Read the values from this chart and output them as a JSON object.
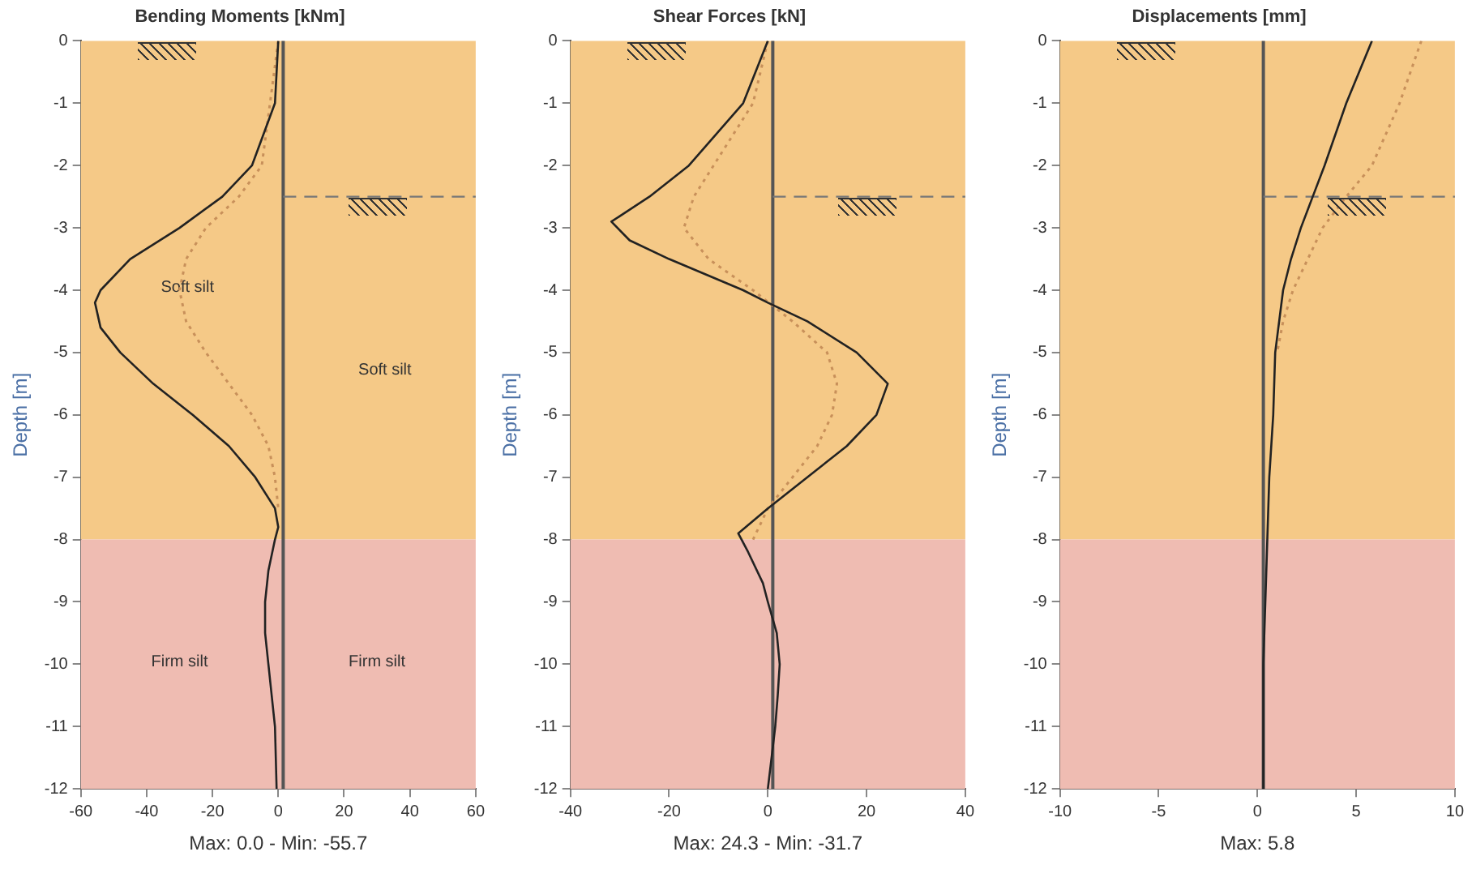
{
  "chart_data": [
    {
      "type": "line",
      "title": "Bending Moments [kNm]",
      "xlabel": "Max: 0.0 - Min: -55.7",
      "ylabel": "Depth [m]",
      "xlim": [
        -60,
        60
      ],
      "xticks": [
        -60,
        -40,
        -20,
        0,
        20,
        40,
        60
      ],
      "ylim": [
        -12,
        0
      ],
      "yticks": [
        0,
        -1,
        -2,
        -3,
        -4,
        -5,
        -6,
        -7,
        -8,
        -9,
        -10,
        -11,
        -12
      ],
      "grid": false,
      "legend": false,
      "marker": "none",
      "series": [
        {
          "color": "#222222",
          "line_style": "solid",
          "x": [
            0,
            -1,
            -8,
            -17,
            -30,
            -45,
            -54,
            -55.7,
            -54,
            -48,
            -38,
            -26,
            -15,
            -7,
            -1,
            0,
            -1,
            -3,
            -4,
            -4,
            -3,
            -2,
            -1,
            -0.5
          ],
          "values": [
            0,
            -1,
            -2,
            -2.5,
            -3,
            -3.5,
            -4,
            -4.2,
            -4.6,
            -5,
            -5.5,
            -6,
            -6.5,
            -7,
            -7.5,
            -7.8,
            -8,
            -8.5,
            -9,
            -9.5,
            -10,
            -10.5,
            -11,
            -12
          ]
        },
        {
          "color": "#c8905a",
          "line_style": "dotted",
          "x": [
            0,
            -5,
            -12,
            -22,
            -28,
            -30,
            -28,
            -22,
            -15,
            -8,
            -3,
            -1,
            0
          ],
          "values": [
            0,
            -2,
            -2.5,
            -3,
            -3.5,
            -4,
            -4.5,
            -5,
            -5.5,
            -6,
            -6.5,
            -7,
            -7.5
          ]
        }
      ],
      "bands": [
        {
          "axis": "y",
          "from": 0,
          "to": -8,
          "color": "#f5c987"
        },
        {
          "axis": "y",
          "from": -8,
          "to": -12,
          "color": "#efbcb2"
        }
      ],
      "ref_lines": [
        {
          "axis": "x",
          "value": 1.5,
          "color": "#555555",
          "line_style": "solid"
        },
        {
          "axis": "y",
          "value": -2.5,
          "color": "#777777",
          "line_style": "dashed"
        }
      ],
      "annotations": [
        "Soft silt",
        "Soft silt",
        "Firm silt",
        "Firm silt"
      ]
    },
    {
      "type": "line",
      "title": "Shear Forces [kN]",
      "xlabel": "Max: 24.3 - Min: -31.7",
      "ylabel": "Depth [m]",
      "xlim": [
        -40,
        40
      ],
      "xticks": [
        -40,
        -20,
        0,
        20,
        40
      ],
      "ylim": [
        -12,
        0
      ],
      "yticks": [
        0,
        -1,
        -2,
        -3,
        -4,
        -5,
        -6,
        -7,
        -8,
        -9,
        -10,
        -11,
        -12
      ],
      "grid": false,
      "legend": false,
      "marker": "none",
      "series": [
        {
          "color": "#222222",
          "line_style": "solid",
          "x": [
            0,
            -5,
            -16,
            -24,
            -31.7,
            -28,
            -20,
            -5,
            0,
            8,
            18,
            24.3,
            22,
            16,
            8,
            0,
            -6,
            -4,
            -1,
            0,
            1.8,
            2.4,
            2,
            1.5,
            0
          ],
          "values": [
            0,
            -1,
            -2,
            -2.5,
            -2.9,
            -3.2,
            -3.5,
            -4,
            -4.2,
            -4.5,
            -5,
            -5.5,
            -6,
            -6.5,
            -7,
            -7.5,
            -7.9,
            -8.2,
            -8.7,
            -9,
            -9.5,
            -10,
            -10.5,
            -11,
            -12
          ]
        },
        {
          "color": "#c8905a",
          "line_style": "dotted",
          "x": [
            0,
            -3,
            -11,
            -15,
            -17,
            -12,
            -3,
            5,
            12,
            14,
            13,
            10,
            5,
            0,
            -3
          ],
          "values": [
            0,
            -1,
            -2,
            -2.5,
            -3,
            -3.5,
            -4,
            -4.5,
            -5,
            -5.5,
            -6,
            -6.5,
            -7,
            -7.5,
            -8
          ]
        }
      ],
      "bands": [
        {
          "axis": "y",
          "from": 0,
          "to": -8,
          "color": "#f5c987"
        },
        {
          "axis": "y",
          "from": -8,
          "to": -12,
          "color": "#efbcb2"
        }
      ],
      "ref_lines": [
        {
          "axis": "x",
          "value": 1,
          "color": "#555555",
          "line_style": "solid"
        },
        {
          "axis": "y",
          "value": -2.5,
          "color": "#777777",
          "line_style": "dashed"
        }
      ]
    },
    {
      "type": "line",
      "title": "Displacements [mm]",
      "xlabel": "Max: 5.8",
      "ylabel": "Depth [m]",
      "xlim": [
        -10,
        10
      ],
      "xticks": [
        -10,
        -5,
        0,
        5,
        10
      ],
      "ylim": [
        -12,
        0
      ],
      "yticks": [
        0,
        -1,
        -2,
        -3,
        -4,
        -5,
        -6,
        -7,
        -8,
        -9,
        -10,
        -11,
        -12
      ],
      "grid": false,
      "legend": false,
      "marker": "none",
      "series": [
        {
          "color": "#222222",
          "line_style": "solid",
          "x": [
            5.8,
            4.5,
            3.4,
            2.8,
            2.2,
            1.7,
            1.3,
            0.9,
            0.8,
            0.6,
            0.5,
            0.4,
            0.3,
            0.3
          ],
          "values": [
            0,
            -1,
            -2,
            -2.5,
            -3,
            -3.5,
            -4,
            -5,
            -6,
            -7,
            -8,
            -9,
            -10,
            -12
          ]
        },
        {
          "color": "#c8905a",
          "line_style": "dotted",
          "x": [
            8.3,
            7.2,
            5.8,
            4.5,
            3.3,
            1.8,
            1.3,
            1
          ],
          "values": [
            0,
            -1,
            -2,
            -2.5,
            -3,
            -4,
            -4.5,
            -5
          ]
        }
      ],
      "bands": [
        {
          "axis": "y",
          "from": 0,
          "to": -8,
          "color": "#f5c987"
        },
        {
          "axis": "y",
          "from": -8,
          "to": -12,
          "color": "#efbcb2"
        }
      ],
      "ref_lines": [
        {
          "axis": "x",
          "value": 0.3,
          "color": "#555555",
          "line_style": "solid"
        },
        {
          "axis": "y",
          "value": -2.5,
          "color": "#777777",
          "line_style": "dashed"
        }
      ]
    }
  ]
}
